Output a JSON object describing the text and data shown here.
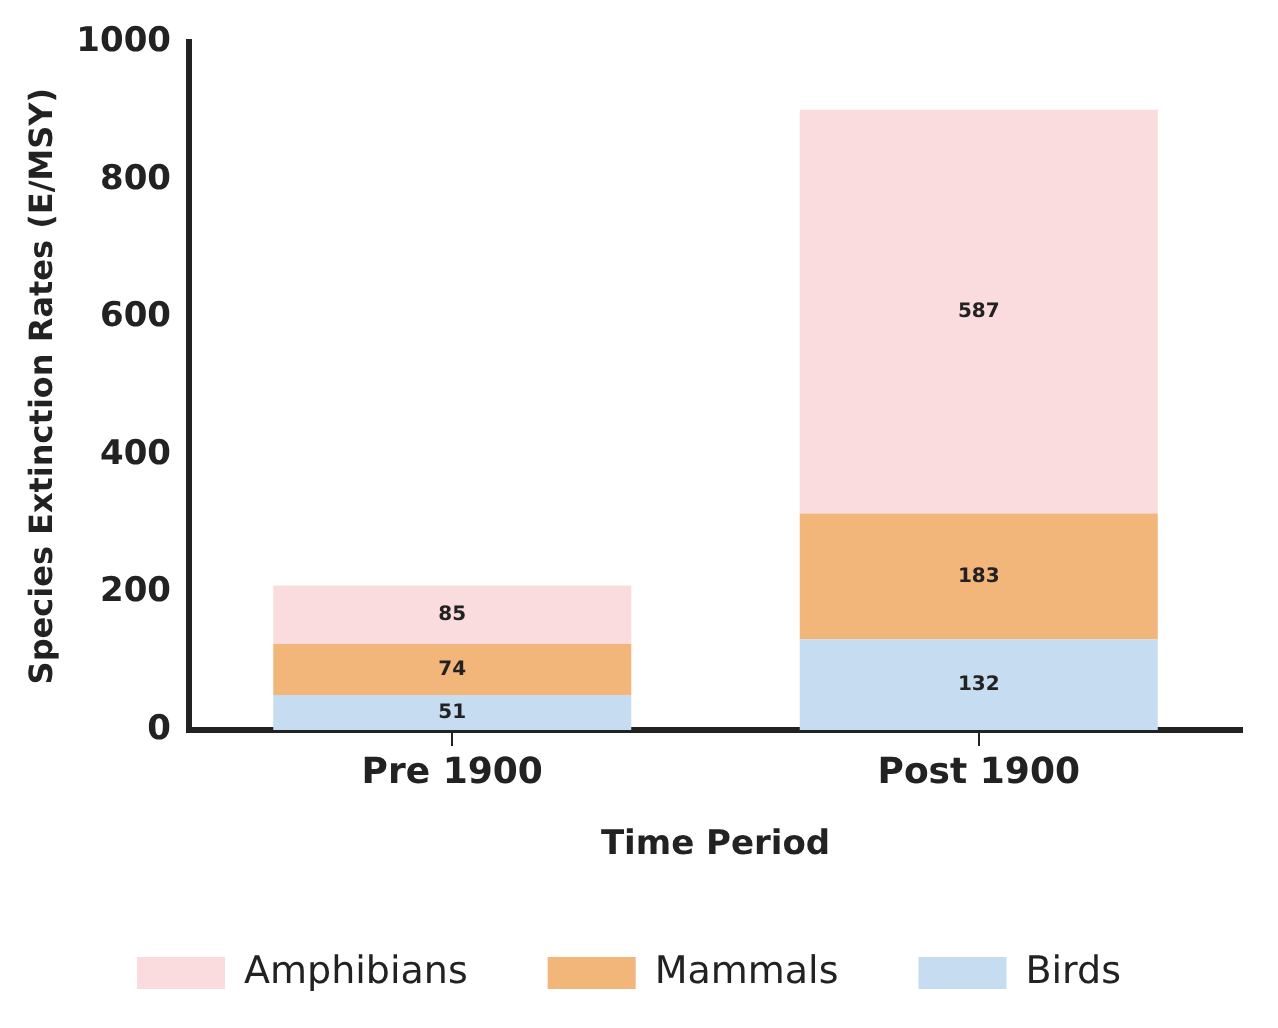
{
  "chart_data": {
    "type": "bar",
    "stacked": true,
    "xlabel": "Time Period",
    "ylabel": "Species Extinction Rates (E/MSY)",
    "categories": [
      "Pre 1900",
      "Post 1900"
    ],
    "series": [
      {
        "name": "Birds",
        "color": "#c6dcf0",
        "values": [
          51,
          132
        ]
      },
      {
        "name": "Mammals",
        "color": "#f2b57a",
        "values": [
          74,
          183
        ]
      },
      {
        "name": "Amphibians",
        "color": "#fadcdf",
        "values": [
          85,
          587
        ]
      }
    ],
    "ylim": [
      0,
      1000
    ],
    "yticks": [
      0,
      200,
      400,
      600,
      800,
      1000
    ],
    "grid": false,
    "legend": "bottom",
    "data_labels": true
  }
}
